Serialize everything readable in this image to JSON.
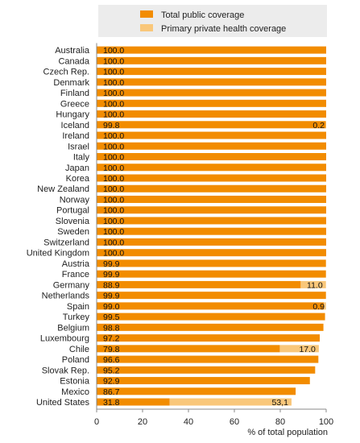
{
  "chart_data": {
    "type": "bar",
    "stacked": true,
    "orientation": "horizontal",
    "categories": [
      "Australia",
      "Canada",
      "Czech Rep.",
      "Denmark",
      "Finland",
      "Greece",
      "Hungary",
      "Iceland",
      "Ireland",
      "Israel",
      "Italy",
      "Japan",
      "Korea",
      "New Zealand",
      "Norway",
      "Portugal",
      "Slovenia",
      "Sweden",
      "Switzerland",
      "United Kingdom",
      "Austria",
      "France",
      "Germany",
      "Netherlands",
      "Spain",
      "Turkey",
      "Belgium",
      "Luxembourg",
      "Chile",
      "Poland",
      "Slovak Rep.",
      "Estonia",
      "Mexico",
      "United States"
    ],
    "series": [
      {
        "name": "Total public coverage",
        "color": "#f28c00",
        "values": [
          100.0,
          100.0,
          100.0,
          100.0,
          100.0,
          100.0,
          100.0,
          99.8,
          100.0,
          100.0,
          100.0,
          100.0,
          100.0,
          100.0,
          100.0,
          100.0,
          100.0,
          100.0,
          100.0,
          100.0,
          99.9,
          99.9,
          88.9,
          99.9,
          99.0,
          99.5,
          98.8,
          97.2,
          79.8,
          96.6,
          95.2,
          92.9,
          86.7,
          31.8
        ],
        "labels": [
          "100.0",
          "100.0",
          "100.0",
          "100.0",
          "100.0",
          "100.0",
          "100.0",
          "99.8",
          "100.0",
          "100.0",
          "100.0",
          "100.0",
          "100.0",
          "100.0",
          "100.0",
          "100.0",
          "100.0",
          "100.0",
          "100.0",
          "100.0",
          "99.9",
          "99.9",
          "88.9",
          "99.9",
          "99.0",
          "99.5",
          "98.8",
          "97.2",
          "79.8",
          "96.6",
          "95.2",
          "92.9",
          "86.7",
          "31.8"
        ]
      },
      {
        "name": "Primary private health coverage",
        "color": "#f9c77a",
        "values": [
          0,
          0,
          0,
          0,
          0,
          0,
          0,
          0.2,
          0,
          0,
          0,
          0,
          0,
          0,
          0,
          0,
          0,
          0,
          0,
          0,
          0,
          0,
          11.0,
          0,
          0.9,
          0,
          0,
          0,
          17.0,
          0,
          0,
          0,
          0,
          53.1
        ],
        "labels": [
          "",
          "",
          "",
          "",
          "",
          "",
          "",
          "0.2",
          "",
          "",
          "",
          "",
          "",
          "",
          "",
          "",
          "",
          "",
          "",
          "",
          "",
          "",
          "11.0",
          "",
          "0.9",
          "",
          "",
          "",
          "17.0",
          "",
          "",
          "",
          "",
          "53,1"
        ]
      }
    ],
    "xlabel": "% of total population",
    "xlim": [
      0,
      100
    ],
    "xticks": [
      "0",
      "20",
      "40",
      "60",
      "80",
      "100"
    ],
    "grid": false,
    "legend_position": "top"
  }
}
